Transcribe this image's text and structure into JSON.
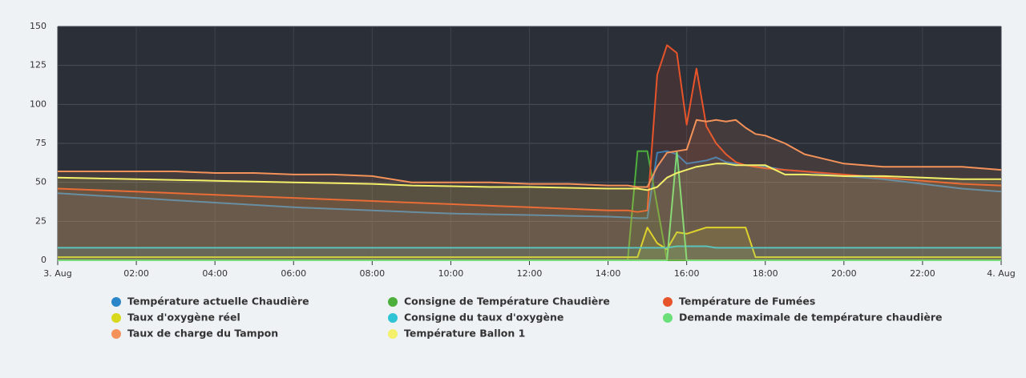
{
  "chart_data": {
    "type": "line",
    "x": [
      0,
      1,
      2,
      3,
      4,
      5,
      6,
      7,
      8,
      9,
      10,
      11,
      12,
      13,
      14,
      14.5,
      14.75,
      15,
      15.25,
      15.5,
      15.75,
      16,
      16.25,
      16.5,
      16.75,
      17,
      17.25,
      17.5,
      17.75,
      18,
      18.5,
      19,
      20,
      21,
      22,
      23,
      24
    ],
    "xlim": [
      0,
      24
    ],
    "xticks": [
      {
        "value": 0,
        "label": "3. Aug"
      },
      {
        "value": 2,
        "label": "02:00"
      },
      {
        "value": 4,
        "label": "04:00"
      },
      {
        "value": 6,
        "label": "06:00"
      },
      {
        "value": 8,
        "label": "08:00"
      },
      {
        "value": 10,
        "label": "10:00"
      },
      {
        "value": 12,
        "label": "12:00"
      },
      {
        "value": 14,
        "label": "14:00"
      },
      {
        "value": 16,
        "label": "16:00"
      },
      {
        "value": 18,
        "label": "18:00"
      },
      {
        "value": 20,
        "label": "20:00"
      },
      {
        "value": 22,
        "label": "22:00"
      },
      {
        "value": 24,
        "label": "4. Aug"
      }
    ],
    "ylim": [
      0,
      150
    ],
    "yticks": [
      0,
      25,
      50,
      75,
      100,
      125,
      150
    ],
    "grid": true,
    "series": [
      {
        "name": "Température actuelle Chaudière",
        "color": "#2a86c8",
        "values": [
          43,
          41.5,
          40,
          38.5,
          37,
          35.5,
          34,
          33,
          32,
          31,
          30,
          29.5,
          29,
          28.5,
          28,
          27.5,
          27,
          27,
          69,
          70,
          68,
          62,
          63,
          64,
          66,
          63,
          62,
          61,
          60,
          60,
          58,
          57,
          54,
          52,
          49,
          46,
          44
        ]
      },
      {
        "name": "Consigne de Température Chaudière",
        "color": "#4caf3c",
        "values": [
          0,
          0,
          0,
          0,
          0,
          0,
          0,
          0,
          0,
          0,
          0,
          0,
          0,
          0,
          0,
          0,
          70,
          70,
          35,
          0,
          0,
          0,
          0,
          0,
          0,
          0,
          0,
          0,
          0,
          0,
          0,
          0,
          0,
          0,
          0,
          0,
          0
        ]
      },
      {
        "name": "Température de Fumées",
        "color": "#e8542a",
        "values": [
          46,
          45,
          44,
          43,
          42,
          41,
          40,
          39,
          38,
          37,
          36,
          35,
          34,
          33,
          32,
          32,
          31,
          32,
          119,
          138,
          133,
          87,
          123,
          86,
          75,
          68,
          63,
          61,
          60,
          59,
          58,
          57,
          55,
          53,
          51,
          49,
          48
        ]
      },
      {
        "name": "Taux d'oxygène réel",
        "color": "#d8d81c",
        "values": [
          2,
          2,
          2,
          2,
          2,
          2,
          2,
          2,
          2,
          2,
          2,
          2,
          2,
          2,
          2,
          2,
          2,
          21,
          11,
          7,
          18,
          17,
          19,
          21,
          21,
          21,
          21,
          21,
          2,
          2,
          2,
          2,
          2,
          2,
          2,
          2,
          2
        ]
      },
      {
        "name": "Consigne du taux d'oxygène",
        "color": "#2ec4d6",
        "values": [
          8,
          8,
          8,
          8,
          8,
          8,
          8,
          8,
          8,
          8,
          8,
          8,
          8,
          8,
          8,
          8,
          8,
          8,
          8,
          8,
          9,
          9,
          9,
          9,
          8,
          8,
          8,
          8,
          8,
          8,
          8,
          8,
          8,
          8,
          8,
          8,
          8
        ]
      },
      {
        "name": "Demande maximale de température chaudière",
        "color": "#6be07a",
        "values": [
          0,
          0,
          0,
          0,
          0,
          0,
          0,
          0,
          0,
          0,
          0,
          0,
          0,
          0,
          0,
          0,
          0,
          0,
          0,
          0,
          70,
          0,
          0,
          0,
          0,
          0,
          0,
          0,
          0,
          0,
          0,
          0,
          0,
          0,
          0,
          0,
          0
        ]
      },
      {
        "name": "Taux de charge du Tampon",
        "color": "#f4925a",
        "values": [
          57,
          57,
          57,
          57,
          56,
          56,
          55,
          55,
          54,
          50,
          50,
          50,
          49,
          49,
          48,
          48,
          47,
          47,
          60,
          69,
          70,
          71,
          90,
          89,
          90,
          89,
          90,
          85,
          81,
          80,
          75,
          68,
          62,
          60,
          60,
          60,
          58
        ]
      },
      {
        "name": "Température Ballon 1",
        "color": "#f5f06a",
        "values": [
          53,
          52.5,
          52,
          51.5,
          51,
          50.5,
          50,
          49.5,
          49,
          48,
          47.5,
          47,
          47,
          46.5,
          46,
          46,
          46,
          45,
          47,
          53,
          56,
          58,
          60,
          61,
          62,
          62,
          61,
          61,
          61,
          61,
          55,
          55,
          54,
          54,
          53,
          52,
          52
        ]
      }
    ]
  }
}
